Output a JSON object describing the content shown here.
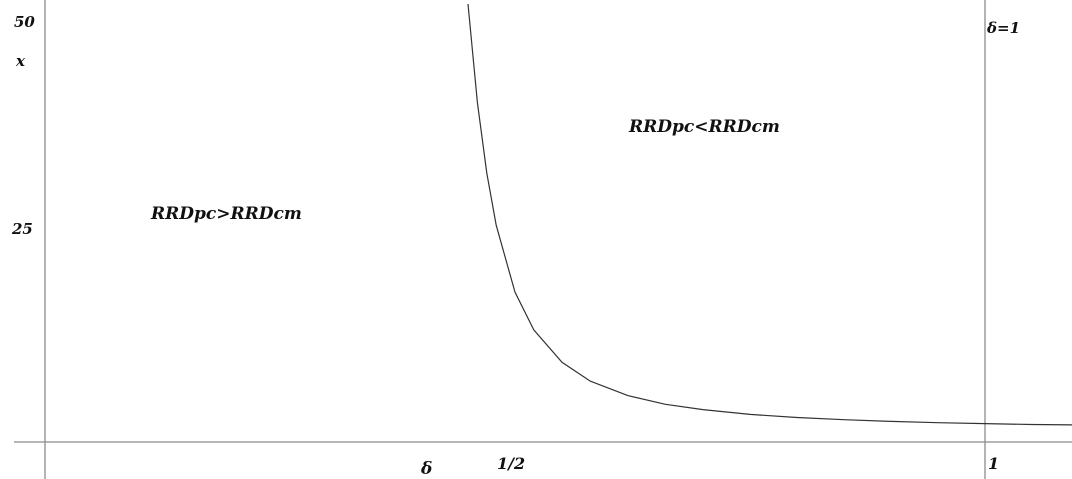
{
  "chart_data": {
    "type": "line",
    "title": "",
    "xlabel": "δ",
    "ylabel": "x",
    "x_tick_labels": [
      "1/2",
      "1"
    ],
    "y_tick_labels": [
      "50",
      "25"
    ],
    "xlim": [
      0,
      1.1
    ],
    "ylim": [
      0,
      50
    ],
    "grid": false,
    "reference_line": {
      "label": "δ=1",
      "x": 1
    },
    "regions": [
      {
        "label": "RRDpc>RRDcm"
      },
      {
        "label": "RRDpc<RRDcm"
      }
    ],
    "series": [
      {
        "x": [
          0.45,
          0.46,
          0.47,
          0.48,
          0.5,
          0.52,
          0.55,
          0.58,
          0.62,
          0.66,
          0.7,
          0.75,
          0.8,
          0.85,
          0.9,
          0.95,
          1.0,
          1.05,
          1.1
        ],
        "y": [
          50.0,
          38.75,
          30.7,
          24.75,
          17.1,
          12.8,
          9.1,
          6.95,
          5.3,
          4.3,
          3.7,
          3.15,
          2.8,
          2.55,
          2.35,
          2.2,
          2.1,
          2.0,
          1.95
        ]
      }
    ]
  }
}
